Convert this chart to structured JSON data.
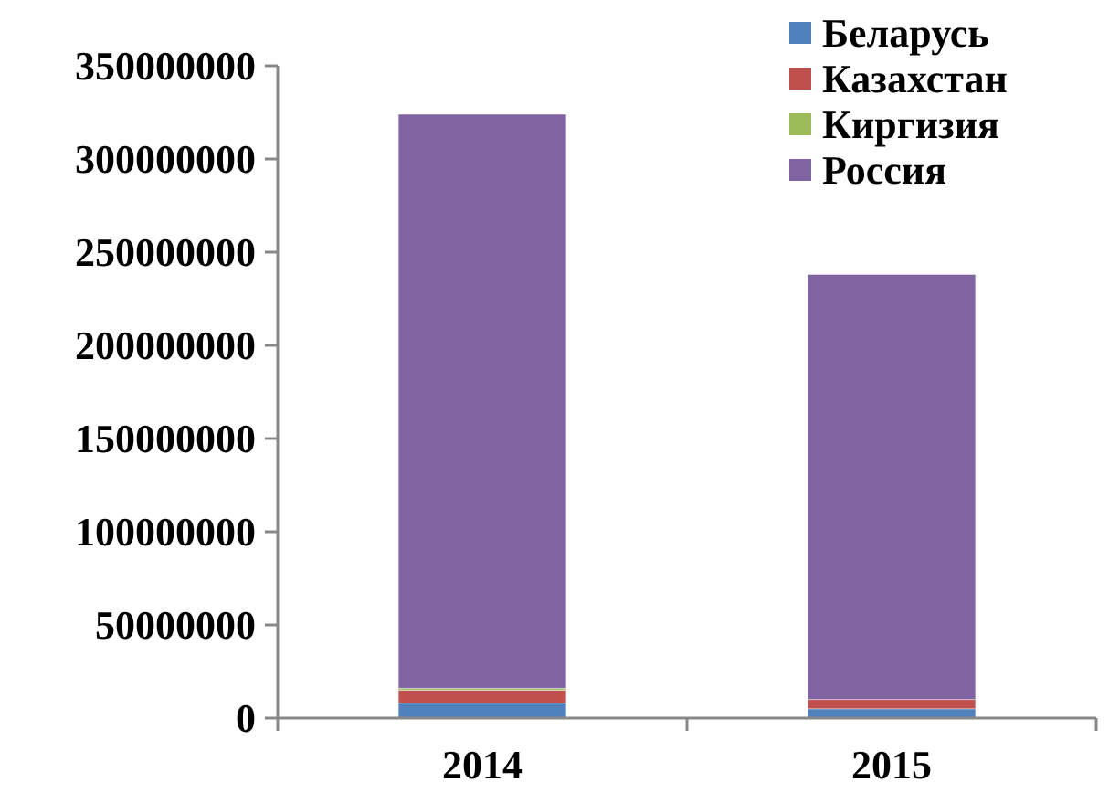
{
  "chart_data": {
    "type": "bar",
    "stacked": true,
    "categories": [
      "2014",
      "2015"
    ],
    "series": [
      {
        "name": "Беларусь",
        "color": "#4f81bd",
        "values": [
          8000000,
          5000000
        ]
      },
      {
        "name": "Казахстан",
        "color": "#c0504d",
        "values": [
          7000000,
          5000000
        ]
      },
      {
        "name": "Киргизия",
        "color": "#9bbb59",
        "values": [
          1000000,
          null
        ]
      },
      {
        "name": "Россия",
        "color": "#8064a2",
        "values": [
          308000000,
          228000000
        ]
      }
    ],
    "ylim": [
      0,
      350000000
    ],
    "yticks": [
      0,
      50000000,
      100000000,
      150000000,
      200000000,
      250000000,
      300000000,
      350000000
    ],
    "legend": "top right"
  }
}
